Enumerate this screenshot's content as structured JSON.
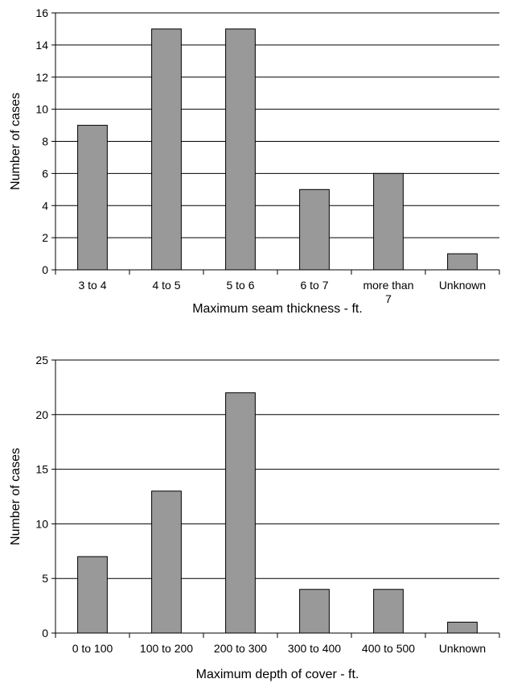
{
  "chart_data": [
    {
      "type": "bar",
      "categories": [
        "3 to 4",
        "4 to 5",
        "5 to 6",
        "6 to 7",
        "more than 7",
        "Unknown"
      ],
      "category_lines": [
        [
          "3 to 4"
        ],
        [
          "4 to 5"
        ],
        [
          "5 to 6"
        ],
        [
          "6 to 7"
        ],
        [
          "more than",
          "7"
        ],
        [
          "Unknown"
        ]
      ],
      "values": [
        9,
        15,
        15,
        5,
        6,
        1
      ],
      "xlabel": "Maximum seam thickness - ft.",
      "ylabel": "Number of cases",
      "ylim": [
        0,
        16
      ],
      "yticks": [
        "0",
        "2",
        "4",
        "6",
        "8",
        "10",
        "12",
        "14",
        "16"
      ],
      "grid": true,
      "bar_color": "#999999"
    },
    {
      "type": "bar",
      "categories": [
        "0 to 100",
        "100 to 200",
        "200 to 300",
        "300 to 400",
        "400 to 500",
        "Unknown"
      ],
      "category_lines": [
        [
          "0 to 100"
        ],
        [
          "100 to 200"
        ],
        [
          "200 to 300"
        ],
        [
          "300 to 400"
        ],
        [
          "400 to 500"
        ],
        [
          "Unknown"
        ]
      ],
      "values": [
        7,
        13,
        22,
        4,
        4,
        1
      ],
      "xlabel": "Maximum depth of cover - ft.",
      "ylabel": "Number of cases",
      "ylim": [
        0,
        25
      ],
      "yticks": [
        "0",
        "5",
        "10",
        "15",
        "20",
        "25"
      ],
      "grid": true,
      "bar_color": "#999999"
    }
  ]
}
